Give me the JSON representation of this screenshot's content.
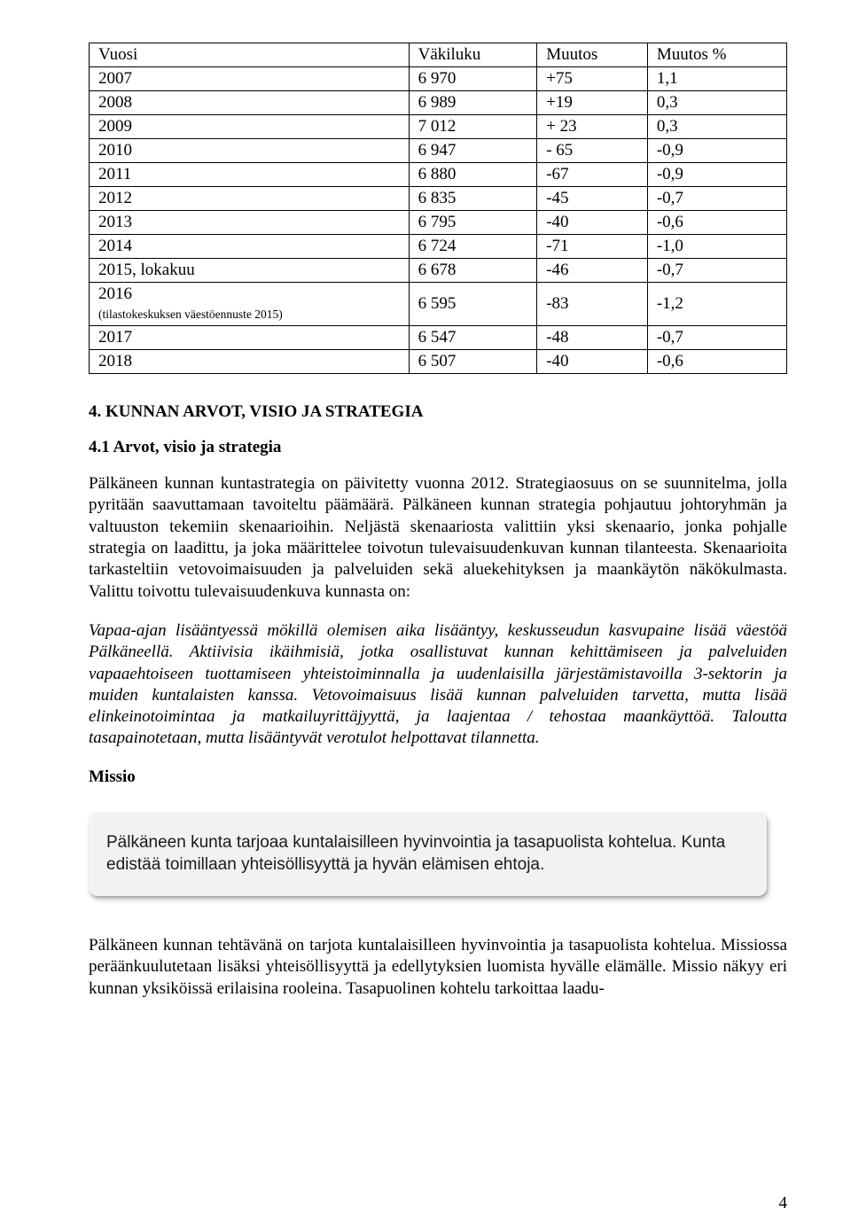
{
  "table": {
    "headers": [
      "Vuosi",
      "Väkiluku",
      "Muutos",
      "Muutos %"
    ],
    "rows": [
      [
        "2007",
        "6 970",
        "+75",
        "1,1"
      ],
      [
        "2008",
        "6 989",
        "+19",
        "0,3"
      ],
      [
        "2009",
        "7 012",
        "+ 23",
        "0,3"
      ],
      [
        "2010",
        "6 947",
        "- 65",
        "-0,9"
      ],
      [
        "2011",
        "6 880",
        "-67",
        "-0,9"
      ],
      [
        "2012",
        "6 835",
        "-45",
        "-0,7"
      ],
      [
        "2013",
        "6 795",
        "-40",
        "-0,6"
      ],
      [
        "2014",
        "6 724",
        "-71",
        "-1,0"
      ],
      [
        "2015, lokakuu",
        "6 678",
        "-46",
        "-0,7"
      ],
      [
        "2016",
        "6 595",
        "-83",
        "-1,2"
      ],
      [
        "2017",
        "6 547",
        "-48",
        "-0,7"
      ],
      [
        "2018",
        "6 507",
        "-40",
        "-0,6"
      ]
    ],
    "row9_sub": "(tilastokeskuksen väestöennuste 2015)"
  },
  "section": {
    "heading": "4. KUNNAN ARVOT, VISIO JA STRATEGIA",
    "subheading": "4.1 Arvot, visio ja strategia",
    "p1": "Pälkäneen kunnan kuntastrategia on päivitetty vuonna 2012. Strategiaosuus on se suunnitelma, jolla pyritään saavuttamaan tavoiteltu päämäärä. Pälkäneen kunnan strategia pohjautuu johtoryhmän ja valtuuston tekemiin skenaarioihin. Neljästä skenaariosta valittiin yksi skenaario, jonka pohjalle strategia on laadittu, ja joka määrittelee toivotun tulevaisuudenkuvan kunnan tilanteesta. Skenaarioita tarkasteltiin vetovoimaisuuden ja palveluiden sekä aluekehityksen ja maankäytön näkökulmasta. Valittu toivottu tulevaisuudenkuva kunnasta on:",
    "p2": "Vapaa-ajan lisääntyessä mökillä olemisen aika lisääntyy, keskusseudun kasvupaine lisää väestöä Pälkäneellä. Aktiivisia ikäihmisiä, jotka osallistuvat kunnan kehittämiseen ja palveluiden vapaaehtoiseen tuottamiseen yhteistoiminnalla ja uudenlaisilla järjestämistavoilla 3-sektorin ja muiden kuntalaisten kanssa. Vetovoimaisuus lisää kunnan palveluiden tarvetta, mutta lisää elinkeinotoimintaa ja matkailuyrittäjyyttä, ja laajentaa / tehostaa maankäyttöä. Taloutta tasapainotetaan, mutta lisääntyvät verotulot helpottavat tilannetta.",
    "missio_label": "Missio",
    "callout": "Pälkäneen kunta tarjoaa kuntalaisilleen hyvinvointia ja tasapuolista kohtelua. Kunta edistää toimillaan yhteisöllisyyttä ja hyvän elämisen ehtoja.",
    "p3": "Pälkäneen kunnan tehtävänä on tarjota kuntalaisilleen hyvinvointia ja tasapuolista kohtelua. Missiossa peräänkuulutetaan lisäksi yhteisöllisyyttä ja edellytyksien luomista hyvälle elämälle. Missio näkyy eri kunnan yksiköissä erilaisina rooleina. Tasapuolinen kohtelu tarkoittaa laadu-"
  },
  "page_number": "4"
}
